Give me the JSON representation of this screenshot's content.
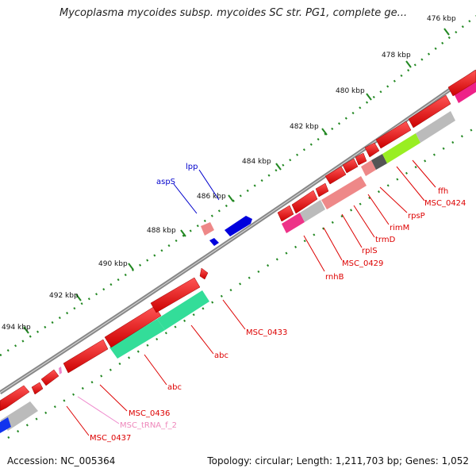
{
  "header": {
    "title": "Mycoplasma mycoides subsp. mycoides SC str. PG1, complete ge..."
  },
  "footer": {
    "accession": "Accession: NC_005364",
    "summary": "Topology: circular; Length: 1,211,703 bp; Genes: 1,052"
  },
  "ruler": {
    "ticks": [
      {
        "label": "476 kbp"
      },
      {
        "label": "478 kbp"
      },
      {
        "label": "480 kbp"
      },
      {
        "label": "482 kbp"
      },
      {
        "label": "484 kbp"
      },
      {
        "label": "486 kbp"
      },
      {
        "label": "488 kbp"
      },
      {
        "label": "490 kbp"
      },
      {
        "label": "492 kbp"
      },
      {
        "label": "494 kbp"
      }
    ]
  },
  "genes": [
    {
      "label": "ffh",
      "color": "#dd0000"
    },
    {
      "label": "MSC_0424",
      "color": "#dd0000"
    },
    {
      "label": "rpsP",
      "color": "#dd0000"
    },
    {
      "label": "rimM",
      "color": "#dd0000"
    },
    {
      "label": "trmD",
      "color": "#dd0000"
    },
    {
      "label": "rplS",
      "color": "#dd0000"
    },
    {
      "label": "MSC_0429",
      "color": "#dd0000"
    },
    {
      "label": "rnhB",
      "color": "#dd0000"
    },
    {
      "label": "lpp",
      "color": "#0000cc"
    },
    {
      "label": "aspS",
      "color": "#0000cc"
    },
    {
      "label": "MSC_0433",
      "color": "#dd0000"
    },
    {
      "label": "abc",
      "color": "#dd0000"
    },
    {
      "label": "abc",
      "color": "#dd0000"
    },
    {
      "label": "MSC_0436",
      "color": "#dd0000"
    },
    {
      "label": "MSC_tRNA_f_2",
      "color": "#ee88bb"
    },
    {
      "label": "MSC_0437",
      "color": "#dd0000"
    }
  ],
  "colors": {
    "forward_gene": "#ee0000",
    "reverse_gene": "#0000dd",
    "backbone": "#777777",
    "tick": "#228822",
    "cog_gray": "#bbbbbb",
    "cog_green": "#33dd99",
    "cog_lime": "#99ee22",
    "cog_pink": "#ee3388",
    "cog_salmon": "#ee8888",
    "cog_dark": "#555555",
    "trna": "#ee88cc"
  }
}
